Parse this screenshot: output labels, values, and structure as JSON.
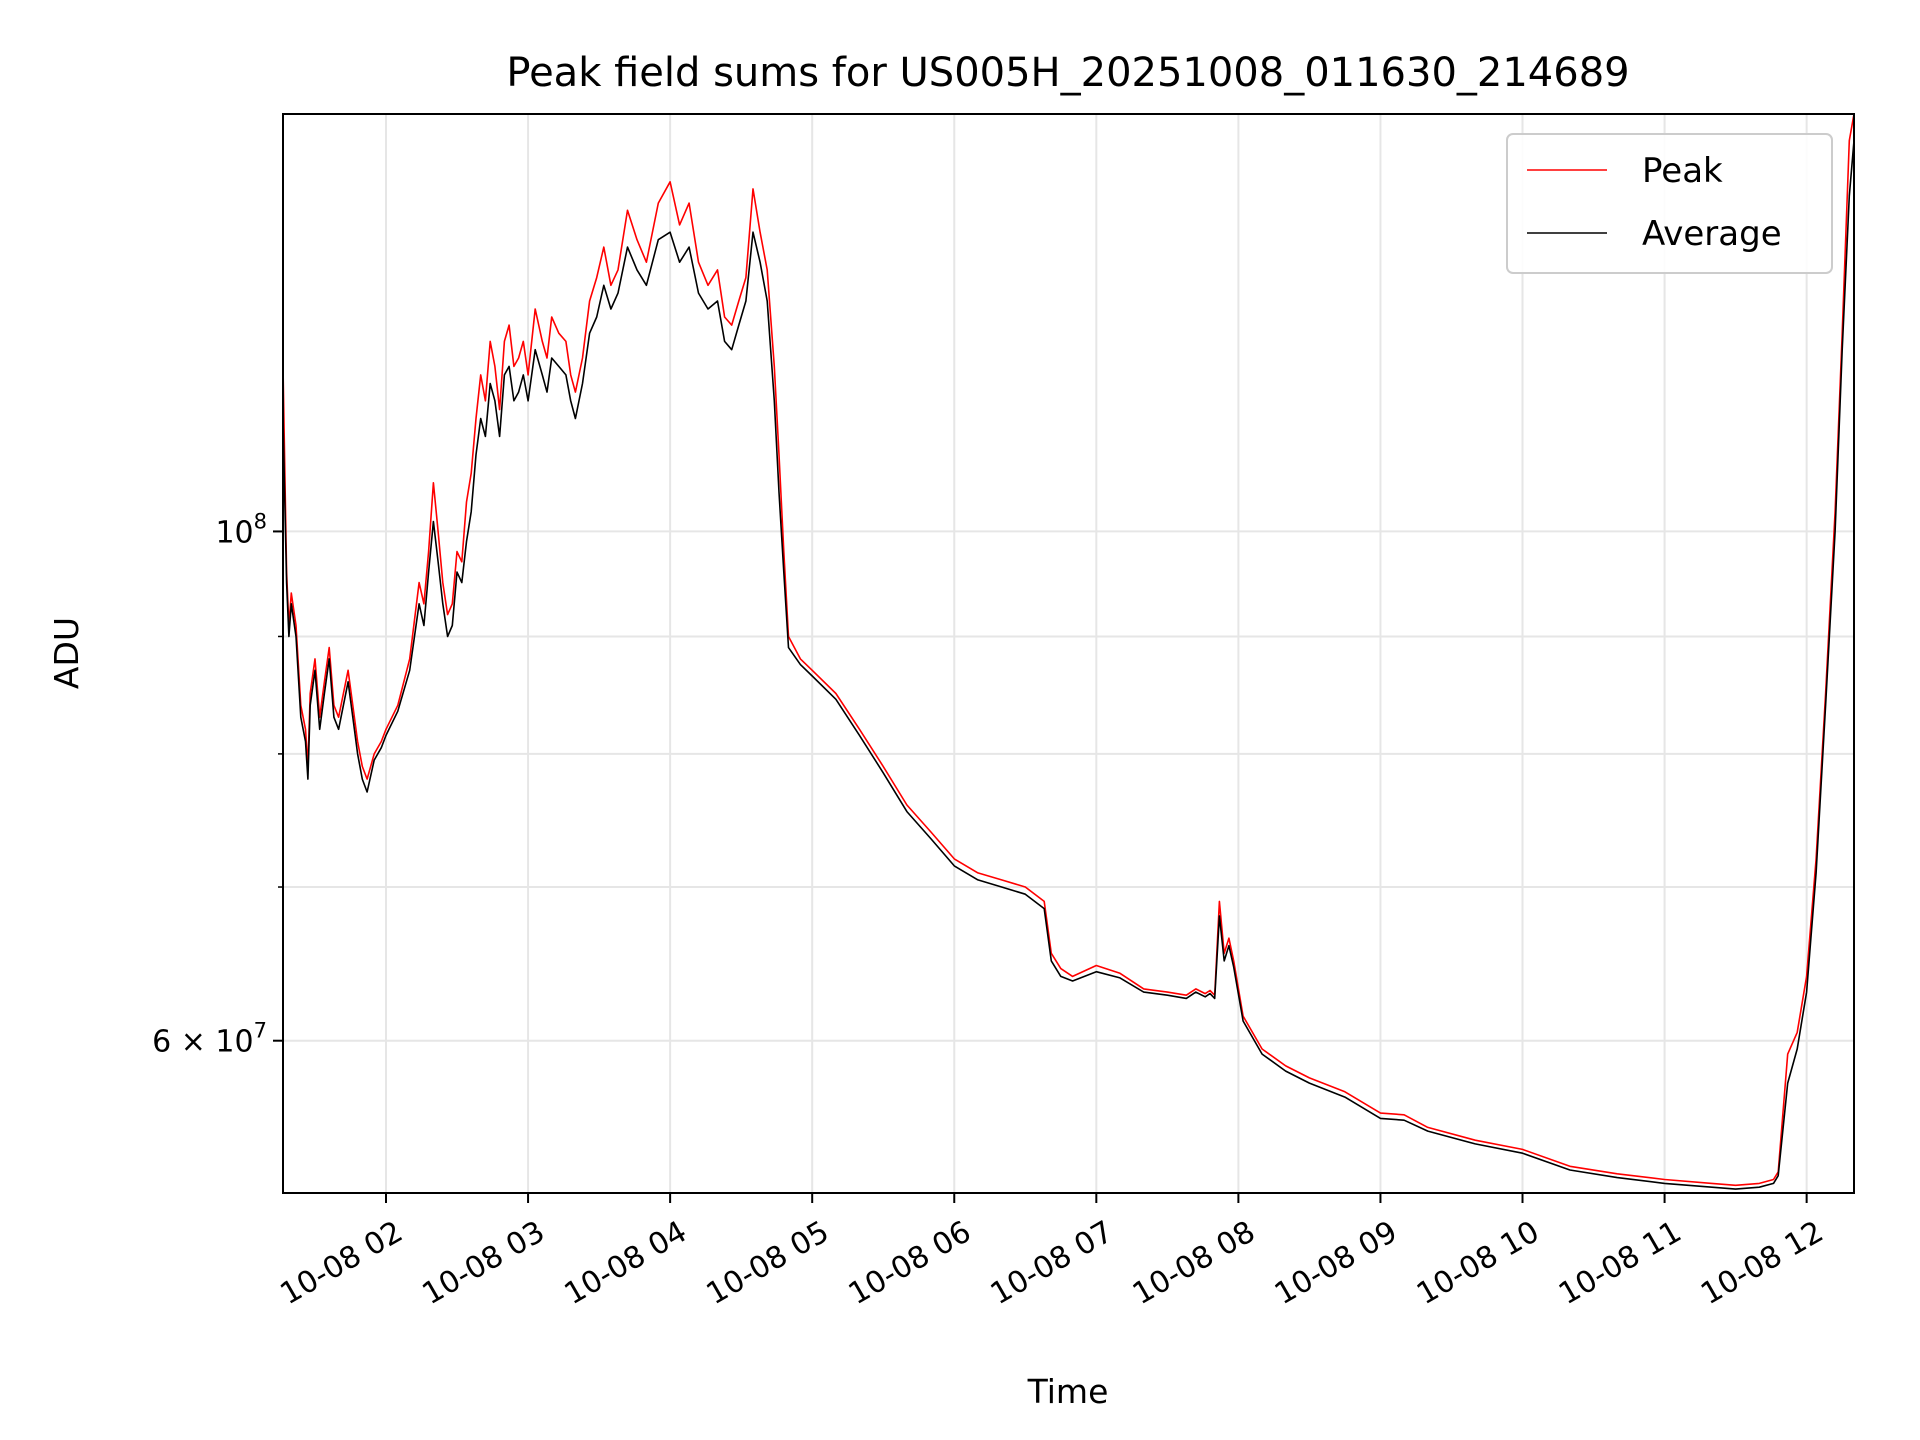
{
  "chart_data": {
    "type": "line",
    "title": "Peak field sums for US005H_20251008_011630_214689",
    "xlabel": "Time",
    "ylabel": "ADU",
    "yscale": "log",
    "grid": true,
    "legend_position": "top-right",
    "xlim": [
      "2025-10-08 01:16:30",
      "2025-10-08 12:20:00"
    ],
    "ylim": [
      51500000,
      152000000
    ],
    "x_ticks": [
      {
        "value": "2025-10-08 02:00",
        "label": "10-08 02"
      },
      {
        "value": "2025-10-08 03:00",
        "label": "10-08 03"
      },
      {
        "value": "2025-10-08 04:00",
        "label": "10-08 04"
      },
      {
        "value": "2025-10-08 05:00",
        "label": "10-08 05"
      },
      {
        "value": "2025-10-08 06:00",
        "label": "10-08 06"
      },
      {
        "value": "2025-10-08 07:00",
        "label": "10-08 07"
      },
      {
        "value": "2025-10-08 08:00",
        "label": "10-08 08"
      },
      {
        "value": "2025-10-08 09:00",
        "label": "10-08 09"
      },
      {
        "value": "2025-10-08 10:00",
        "label": "10-08 10"
      },
      {
        "value": "2025-10-08 11:00",
        "label": "10-08 11"
      },
      {
        "value": "2025-10-08 12:00",
        "label": "10-08 12"
      }
    ],
    "y_major_ticks": [
      {
        "value": 100000000,
        "base": "10",
        "exp": "8"
      },
      {
        "value": 60000000,
        "base": "6 × 10",
        "exp": "7"
      }
    ],
    "y_minor_ticks": [
      70000000,
      80000000,
      90000000
    ],
    "x": [
      "2025-10-08 01:16:30",
      "2025-10-08 01:18",
      "2025-10-08 01:19",
      "2025-10-08 01:20",
      "2025-10-08 01:22",
      "2025-10-08 01:24",
      "2025-10-08 01:26",
      "2025-10-08 01:27",
      "2025-10-08 01:28",
      "2025-10-08 01:30",
      "2025-10-08 01:32",
      "2025-10-08 01:34",
      "2025-10-08 01:36",
      "2025-10-08 01:38",
      "2025-10-08 01:40",
      "2025-10-08 01:42",
      "2025-10-08 01:44",
      "2025-10-08 01:46",
      "2025-10-08 01:48",
      "2025-10-08 01:50",
      "2025-10-08 01:52",
      "2025-10-08 01:55",
      "2025-10-08 01:58",
      "2025-10-08 02:00",
      "2025-10-08 02:05",
      "2025-10-08 02:10",
      "2025-10-08 02:14",
      "2025-10-08 02:16",
      "2025-10-08 02:18",
      "2025-10-08 02:20",
      "2025-10-08 02:22",
      "2025-10-08 02:24",
      "2025-10-08 02:26",
      "2025-10-08 02:28",
      "2025-10-08 02:30",
      "2025-10-08 02:32",
      "2025-10-08 02:34",
      "2025-10-08 02:36",
      "2025-10-08 02:38",
      "2025-10-08 02:40",
      "2025-10-08 02:42",
      "2025-10-08 02:44",
      "2025-10-08 02:46",
      "2025-10-08 02:48",
      "2025-10-08 02:50",
      "2025-10-08 02:52",
      "2025-10-08 02:54",
      "2025-10-08 02:56",
      "2025-10-08 02:58",
      "2025-10-08 03:00",
      "2025-10-08 03:03",
      "2025-10-08 03:06",
      "2025-10-08 03:08",
      "2025-10-08 03:10",
      "2025-10-08 03:13",
      "2025-10-08 03:16",
      "2025-10-08 03:18",
      "2025-10-08 03:20",
      "2025-10-08 03:23",
      "2025-10-08 03:26",
      "2025-10-08 03:29",
      "2025-10-08 03:32",
      "2025-10-08 03:35",
      "2025-10-08 03:38",
      "2025-10-08 03:42",
      "2025-10-08 03:46",
      "2025-10-08 03:50",
      "2025-10-08 03:55",
      "2025-10-08 04:00",
      "2025-10-08 04:04",
      "2025-10-08 04:08",
      "2025-10-08 04:12",
      "2025-10-08 04:16",
      "2025-10-08 04:20",
      "2025-10-08 04:23",
      "2025-10-08 04:26",
      "2025-10-08 04:29",
      "2025-10-08 04:32",
      "2025-10-08 04:35",
      "2025-10-08 04:38",
      "2025-10-08 04:41",
      "2025-10-08 04:44",
      "2025-10-08 04:46",
      "2025-10-08 04:48",
      "2025-10-08 04:50",
      "2025-10-08 04:55",
      "2025-10-08 05:00",
      "2025-10-08 05:10",
      "2025-10-08 05:20",
      "2025-10-08 05:30",
      "2025-10-08 05:40",
      "2025-10-08 05:50",
      "2025-10-08 06:00",
      "2025-10-08 06:10",
      "2025-10-08 06:20",
      "2025-10-08 06:30",
      "2025-10-08 06:38",
      "2025-10-08 06:41",
      "2025-10-08 06:45",
      "2025-10-08 06:50",
      "2025-10-08 07:00",
      "2025-10-08 07:10",
      "2025-10-08 07:20",
      "2025-10-08 07:30",
      "2025-10-08 07:38",
      "2025-10-08 07:42",
      "2025-10-08 07:46",
      "2025-10-08 07:48",
      "2025-10-08 07:50",
      "2025-10-08 07:52",
      "2025-10-08 07:54",
      "2025-10-08 07:56",
      "2025-10-08 07:58",
      "2025-10-08 08:02",
      "2025-10-08 08:10",
      "2025-10-08 08:20",
      "2025-10-08 08:30",
      "2025-10-08 08:45",
      "2025-10-08 09:00",
      "2025-10-08 09:10",
      "2025-10-08 09:20",
      "2025-10-08 09:40",
      "2025-10-08 10:00",
      "2025-10-08 10:20",
      "2025-10-08 10:40",
      "2025-10-08 11:00",
      "2025-10-08 11:20",
      "2025-10-08 11:30",
      "2025-10-08 11:40",
      "2025-10-08 11:46",
      "2025-10-08 11:48",
      "2025-10-08 11:52",
      "2025-10-08 11:56",
      "2025-10-08 12:00",
      "2025-10-08 12:04",
      "2025-10-08 12:08",
      "2025-10-08 12:12",
      "2025-10-08 12:15",
      "2025-10-08 12:18",
      "2025-10-08 12:20"
    ],
    "series": [
      {
        "name": "Peak",
        "color": "#ff0000",
        "values": [
          118000000,
          96000000,
          91000000,
          94000000,
          91000000,
          84000000,
          82000000,
          79000000,
          85000000,
          88000000,
          83000000,
          86000000,
          89000000,
          84000000,
          83000000,
          85000000,
          87000000,
          84000000,
          81000000,
          79000000,
          78000000,
          80000000,
          81000000,
          82000000,
          84000000,
          88000000,
          95000000,
          93000000,
          98000000,
          105000000,
          100000000,
          95000000,
          92000000,
          93000000,
          98000000,
          97000000,
          103000000,
          106000000,
          112000000,
          117000000,
          114000000,
          121000000,
          118000000,
          113000000,
          121000000,
          123000000,
          118000000,
          119000000,
          121000000,
          117000000,
          125000000,
          121000000,
          119000000,
          124000000,
          122000000,
          121000000,
          117000000,
          115000000,
          119000000,
          126000000,
          129000000,
          133000000,
          128000000,
          130000000,
          138000000,
          134000000,
          131000000,
          139000000,
          142000000,
          136000000,
          139000000,
          131000000,
          128000000,
          130000000,
          124000000,
          123000000,
          126000000,
          129000000,
          141000000,
          135000000,
          130000000,
          118000000,
          108000000,
          98000000,
          90000000,
          88000000,
          87000000,
          85000000,
          82000000,
          79000000,
          76000000,
          74000000,
          72000000,
          71000000,
          70500000,
          70000000,
          69000000,
          65500000,
          64500000,
          64000000,
          64700000,
          64200000,
          63200000,
          63000000,
          62800000,
          63200000,
          62900000,
          63100000,
          62800000,
          69000000,
          65500000,
          66500000,
          65000000,
          61500000,
          59500000,
          58500000,
          57800000,
          57000000,
          55800000,
          55700000,
          55000000,
          54300000,
          53800000,
          52900000,
          52500000,
          52200000,
          52000000,
          51900000,
          52000000,
          52200000,
          52600000,
          59200000,
          60500000,
          64000000,
          72000000,
          85000000,
          102000000,
          122000000,
          148000000,
          152000000
        ]
      },
      {
        "name": "Average",
        "color": "#000000",
        "values": [
          112000000,
          95000000,
          90000000,
          93000000,
          90000000,
          83000000,
          81000000,
          78000000,
          84000000,
          87000000,
          82000000,
          85000000,
          88000000,
          83000000,
          82000000,
          84000000,
          86000000,
          83000000,
          80000000,
          78000000,
          77000000,
          79500000,
          80500000,
          81500000,
          83500000,
          87000000,
          93000000,
          91000000,
          96000000,
          101000000,
          97000000,
          93000000,
          90000000,
          91000000,
          96000000,
          95000000,
          99000000,
          102000000,
          108000000,
          112000000,
          110000000,
          116000000,
          114000000,
          110000000,
          117000000,
          118000000,
          114000000,
          115000000,
          117000000,
          114000000,
          120000000,
          117000000,
          115000000,
          119000000,
          118000000,
          117000000,
          114000000,
          112000000,
          116000000,
          122000000,
          124000000,
          128000000,
          125000000,
          127000000,
          133000000,
          130000000,
          128000000,
          134000000,
          135000000,
          131000000,
          133000000,
          127000000,
          125000000,
          126000000,
          121000000,
          120000000,
          123000000,
          126000000,
          135000000,
          131000000,
          126000000,
          114000000,
          104000000,
          96000000,
          89000000,
          87500000,
          86500000,
          84500000,
          81500000,
          78500000,
          75500000,
          73500000,
          71500000,
          70500000,
          70000000,
          69500000,
          68500000,
          65000000,
          64000000,
          63700000,
          64300000,
          63900000,
          63000000,
          62800000,
          62600000,
          63000000,
          62700000,
          62900000,
          62600000,
          68000000,
          65000000,
          66000000,
          64600000,
          61200000,
          59200000,
          58200000,
          57500000,
          56700000,
          55500000,
          55400000,
          54800000,
          54100000,
          53600000,
          52700000,
          52300000,
          52000000,
          51800000,
          51700000,
          51800000,
          52000000,
          52400000,
          57500000,
          59500000,
          63000000,
          71000000,
          84000000,
          100000000,
          120000000,
          140000000,
          148000000
        ]
      }
    ]
  }
}
